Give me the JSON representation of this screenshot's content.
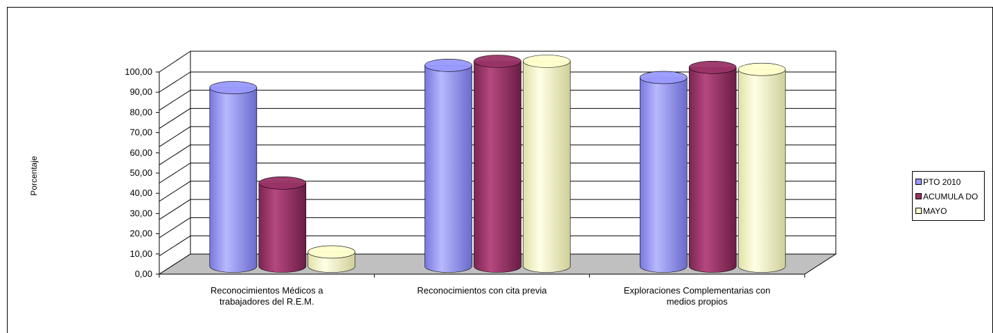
{
  "chart_data": {
    "type": "bar",
    "style": "3d-cylinder",
    "title": "",
    "xlabel": "",
    "ylabel": "Porcentaje",
    "ylim": [
      0,
      100
    ],
    "ytick_labels": [
      "0,00",
      "10,00",
      "20,00",
      "30,00",
      "40,00",
      "50,00",
      "60,00",
      "70,00",
      "80,00",
      "90,00",
      "100,00"
    ],
    "grid": true,
    "legend_position": "right",
    "categories": [
      [
        "Reconocimientos Médicos a",
        "trabajadores del R.E.M."
      ],
      [
        "Reconocimientos con cita previa"
      ],
      [
        "Exploraciones Complementarias con",
        "medios propios"
      ]
    ],
    "series": [
      {
        "name": "PTO  2010",
        "color": "#9999FF",
        "values": [
          87,
          98,
          92
        ]
      },
      {
        "name": "ACUMULA DO",
        "color": "#993366",
        "values": [
          40,
          100,
          97
        ]
      },
      {
        "name": "MAYO",
        "color": "#FFFFCC",
        "values": [
          6,
          100,
          96
        ]
      }
    ]
  }
}
